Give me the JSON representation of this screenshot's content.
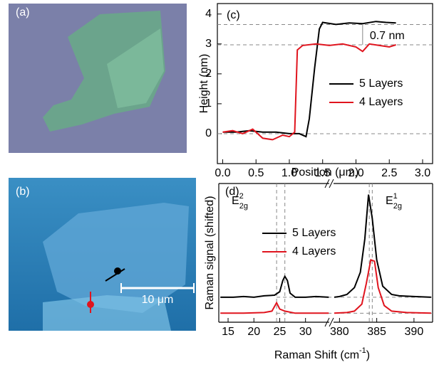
{
  "panels": {
    "a": {
      "label": "(a)"
    },
    "b": {
      "label": "(b)",
      "scale_bar": "10 μm"
    }
  },
  "chart_data": [
    {
      "type": "line",
      "panel_label": "(c)",
      "x_label": "Position (μm)",
      "y_label": "Height (nm)",
      "xlim": [
        -0.08,
        3.15
      ],
      "ylim": [
        -1,
        4.35
      ],
      "xticks": [
        {
          "value": 0,
          "label": "0.0"
        },
        {
          "value": 0.5,
          "label": "0.5"
        },
        {
          "value": 1,
          "label": "1.0"
        },
        {
          "value": 1.5,
          "label": "1.5"
        },
        {
          "value": 2,
          "label": "2.0"
        },
        {
          "value": 2.5,
          "label": "2.5"
        },
        {
          "value": 3,
          "label": "3.0"
        }
      ],
      "yticks": [
        0,
        1,
        2,
        3,
        4
      ],
      "hlines": [
        0,
        2.97,
        3.65
      ],
      "annotation": "0.7 nm",
      "annotation_x": 2.1,
      "series": [
        {
          "name": "5 Layers",
          "color": "#000000",
          "x": [
            0,
            0.2,
            0.4,
            0.6,
            0.8,
            1.0,
            1.15,
            1.25,
            1.3,
            1.38,
            1.45,
            1.5,
            1.7,
            1.9,
            2.1,
            2.3,
            2.45,
            2.6
          ],
          "values": [
            0.05,
            0.05,
            0.1,
            0.05,
            0.05,
            0.0,
            0.0,
            -0.1,
            0.5,
            2.2,
            3.5,
            3.72,
            3.65,
            3.7,
            3.68,
            3.75,
            3.72,
            3.7
          ]
        },
        {
          "name": "4 Layers",
          "color": "#e0141e",
          "x": [
            0,
            0.15,
            0.3,
            0.45,
            0.6,
            0.75,
            0.9,
            1.0,
            1.08,
            1.12,
            1.2,
            1.4,
            1.6,
            1.8,
            2.0,
            2.1,
            2.2,
            2.35,
            2.5,
            2.6
          ],
          "values": [
            0.05,
            0.1,
            0.0,
            0.15,
            -0.15,
            -0.2,
            -0.05,
            -0.1,
            0.05,
            2.8,
            2.95,
            3.0,
            2.95,
            3.0,
            2.9,
            2.75,
            3.0,
            2.95,
            2.9,
            2.97
          ]
        }
      ],
      "legend": "right"
    },
    {
      "type": "line",
      "panel_label": "(d)",
      "y_label": "Raman signal (shifted)",
      "x_label": {
        "text": "Raman Shift (cm",
        "sup": "-1",
        "close": ")"
      },
      "ylim": [
        0,
        10
      ],
      "x_segments": [
        {
          "xlim": [
            13.2,
            34.6
          ],
          "xticks": [
            15,
            20,
            25,
            30
          ]
        },
        {
          "xlim": [
            379.2,
            392.5
          ],
          "xticks": [
            380,
            385,
            390
          ]
        }
      ],
      "vlines": [
        24.4,
        26,
        384,
        384.4
      ],
      "hlines": [
        1.8,
        0.65
      ],
      "peak_labels": [
        {
          "base": "E",
          "sup": "2",
          "sub": "2g"
        },
        {
          "base": "E",
          "sup": "1",
          "sub": "2g"
        }
      ],
      "series": [
        {
          "name": "5 Layers",
          "color": "#000000",
          "x": [
            13.5,
            16,
            18,
            20,
            22,
            24,
            25,
            25.6,
            26,
            26.5,
            27,
            28,
            30,
            32,
            34.5,
            379.3,
            380,
            381,
            382,
            382.8,
            383.4,
            383.9,
            384.4,
            385,
            385.8,
            387,
            388,
            390,
            392.3
          ],
          "values": [
            1.8,
            1.8,
            1.85,
            1.8,
            1.9,
            1.95,
            2.2,
            3.0,
            3.3,
            3.0,
            2.1,
            1.8,
            1.8,
            1.85,
            1.8,
            1.8,
            1.85,
            2.0,
            2.5,
            3.6,
            6.0,
            9.2,
            7.5,
            4.5,
            2.6,
            2.0,
            1.9,
            1.85,
            1.8
          ]
        },
        {
          "name": "4 Layers",
          "color": "#e0141e",
          "x": [
            13.5,
            18,
            22,
            23.5,
            24.4,
            25,
            26,
            28,
            34.5,
            379.3,
            381,
            382,
            383,
            383.6,
            384.2,
            384.7,
            385.2,
            386,
            387,
            389,
            392.3
          ],
          "values": [
            0.65,
            0.65,
            0.7,
            0.8,
            1.4,
            0.95,
            0.8,
            0.65,
            0.65,
            0.65,
            0.7,
            0.8,
            1.3,
            2.8,
            4.5,
            4.4,
            2.5,
            1.2,
            0.8,
            0.7,
            0.65
          ]
        }
      ]
    }
  ]
}
